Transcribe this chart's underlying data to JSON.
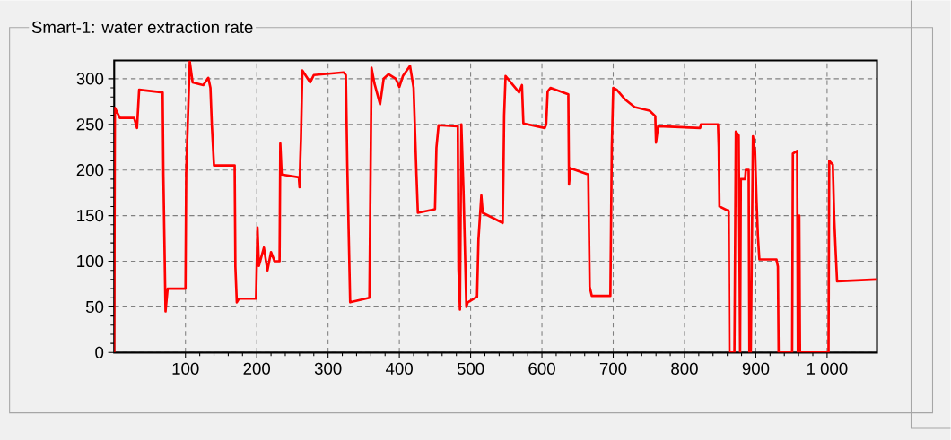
{
  "chart_data": {
    "type": "line",
    "title": "Smart-1: water extraction rate",
    "x": [
      0,
      1,
      8,
      28,
      32,
      35,
      68,
      69,
      72,
      75,
      100,
      101,
      106,
      110,
      125,
      132,
      135,
      137,
      140,
      169,
      170,
      172,
      175,
      199,
      201,
      203,
      210,
      215,
      220,
      225,
      232,
      233,
      235,
      259,
      260,
      261,
      262,
      264,
      275,
      280,
      322,
      325,
      327,
      331,
      358,
      361,
      365,
      373,
      378,
      385,
      395,
      400,
      405,
      415,
      420,
      424,
      426,
      450,
      452,
      455,
      482,
      483,
      485,
      487,
      490,
      494,
      496,
      509,
      511,
      515,
      517,
      545,
      546,
      547,
      549,
      568,
      572,
      574,
      604,
      606,
      608,
      612,
      637,
      638,
      640,
      665,
      667,
      670,
      696,
      698,
      700,
      705,
      717,
      730,
      751,
      759,
      760,
      763,
      822,
      823,
      847,
      848,
      849,
      862,
      863,
      870,
      872,
      876,
      878,
      879,
      885,
      886,
      890,
      891,
      893,
      896,
      899,
      901,
      903,
      905,
      929,
      931,
      932,
      951,
      952,
      958,
      959,
      960,
      961,
      962,
      1002,
      1003,
      1008,
      1010,
      1012,
      1014,
      1069
    ],
    "series": [
      {
        "color": "#ff0000",
        "values": [
          0,
          268,
          257,
          257,
          246,
          288,
          285,
          195,
          45,
          70,
          70,
          197,
          319,
          296,
          293,
          301,
          290,
          249,
          205,
          205,
          94,
          55,
          59,
          59,
          137,
          95,
          115,
          90,
          110,
          100,
          100,
          229,
          195,
          192,
          181,
          210,
          234,
          309,
          296,
          304,
          307,
          304,
          204,
          55,
          60,
          312,
          295,
          272,
          300,
          305,
          300,
          291,
          303,
          314,
          290,
          195,
          153,
          157,
          224,
          249,
          248,
          91,
          47,
          250,
          177,
          50,
          55,
          61,
          124,
          172,
          153,
          142,
          195,
          260,
          303,
          285,
          293,
          251,
          246,
          250,
          286,
          290,
          283,
          184,
          202,
          195,
          72,
          62,
          62,
          225,
          290,
          288,
          277,
          269,
          265,
          259,
          230,
          248,
          246,
          250,
          250,
          225,
          160,
          155,
          0,
          0,
          242,
          238,
          0,
          190,
          190,
          200,
          200,
          0,
          0,
          237,
          220,
          168,
          127,
          102,
          102,
          94,
          0,
          0,
          218,
          221,
          0,
          0,
          150,
          0,
          0,
          210,
          206,
          147,
          111,
          78,
          80
        ]
      }
    ],
    "xlim": [
      0,
      1070
    ],
    "ylim": [
      0,
      320
    ],
    "xticks": [
      100,
      200,
      300,
      400,
      500,
      600,
      700,
      800,
      900,
      {
        "value": 1000,
        "label": "1 000"
      }
    ],
    "yticks": [
      0,
      50,
      100,
      150,
      200,
      250,
      300
    ],
    "grid": true,
    "line_style": "solid",
    "marker": "none"
  }
}
